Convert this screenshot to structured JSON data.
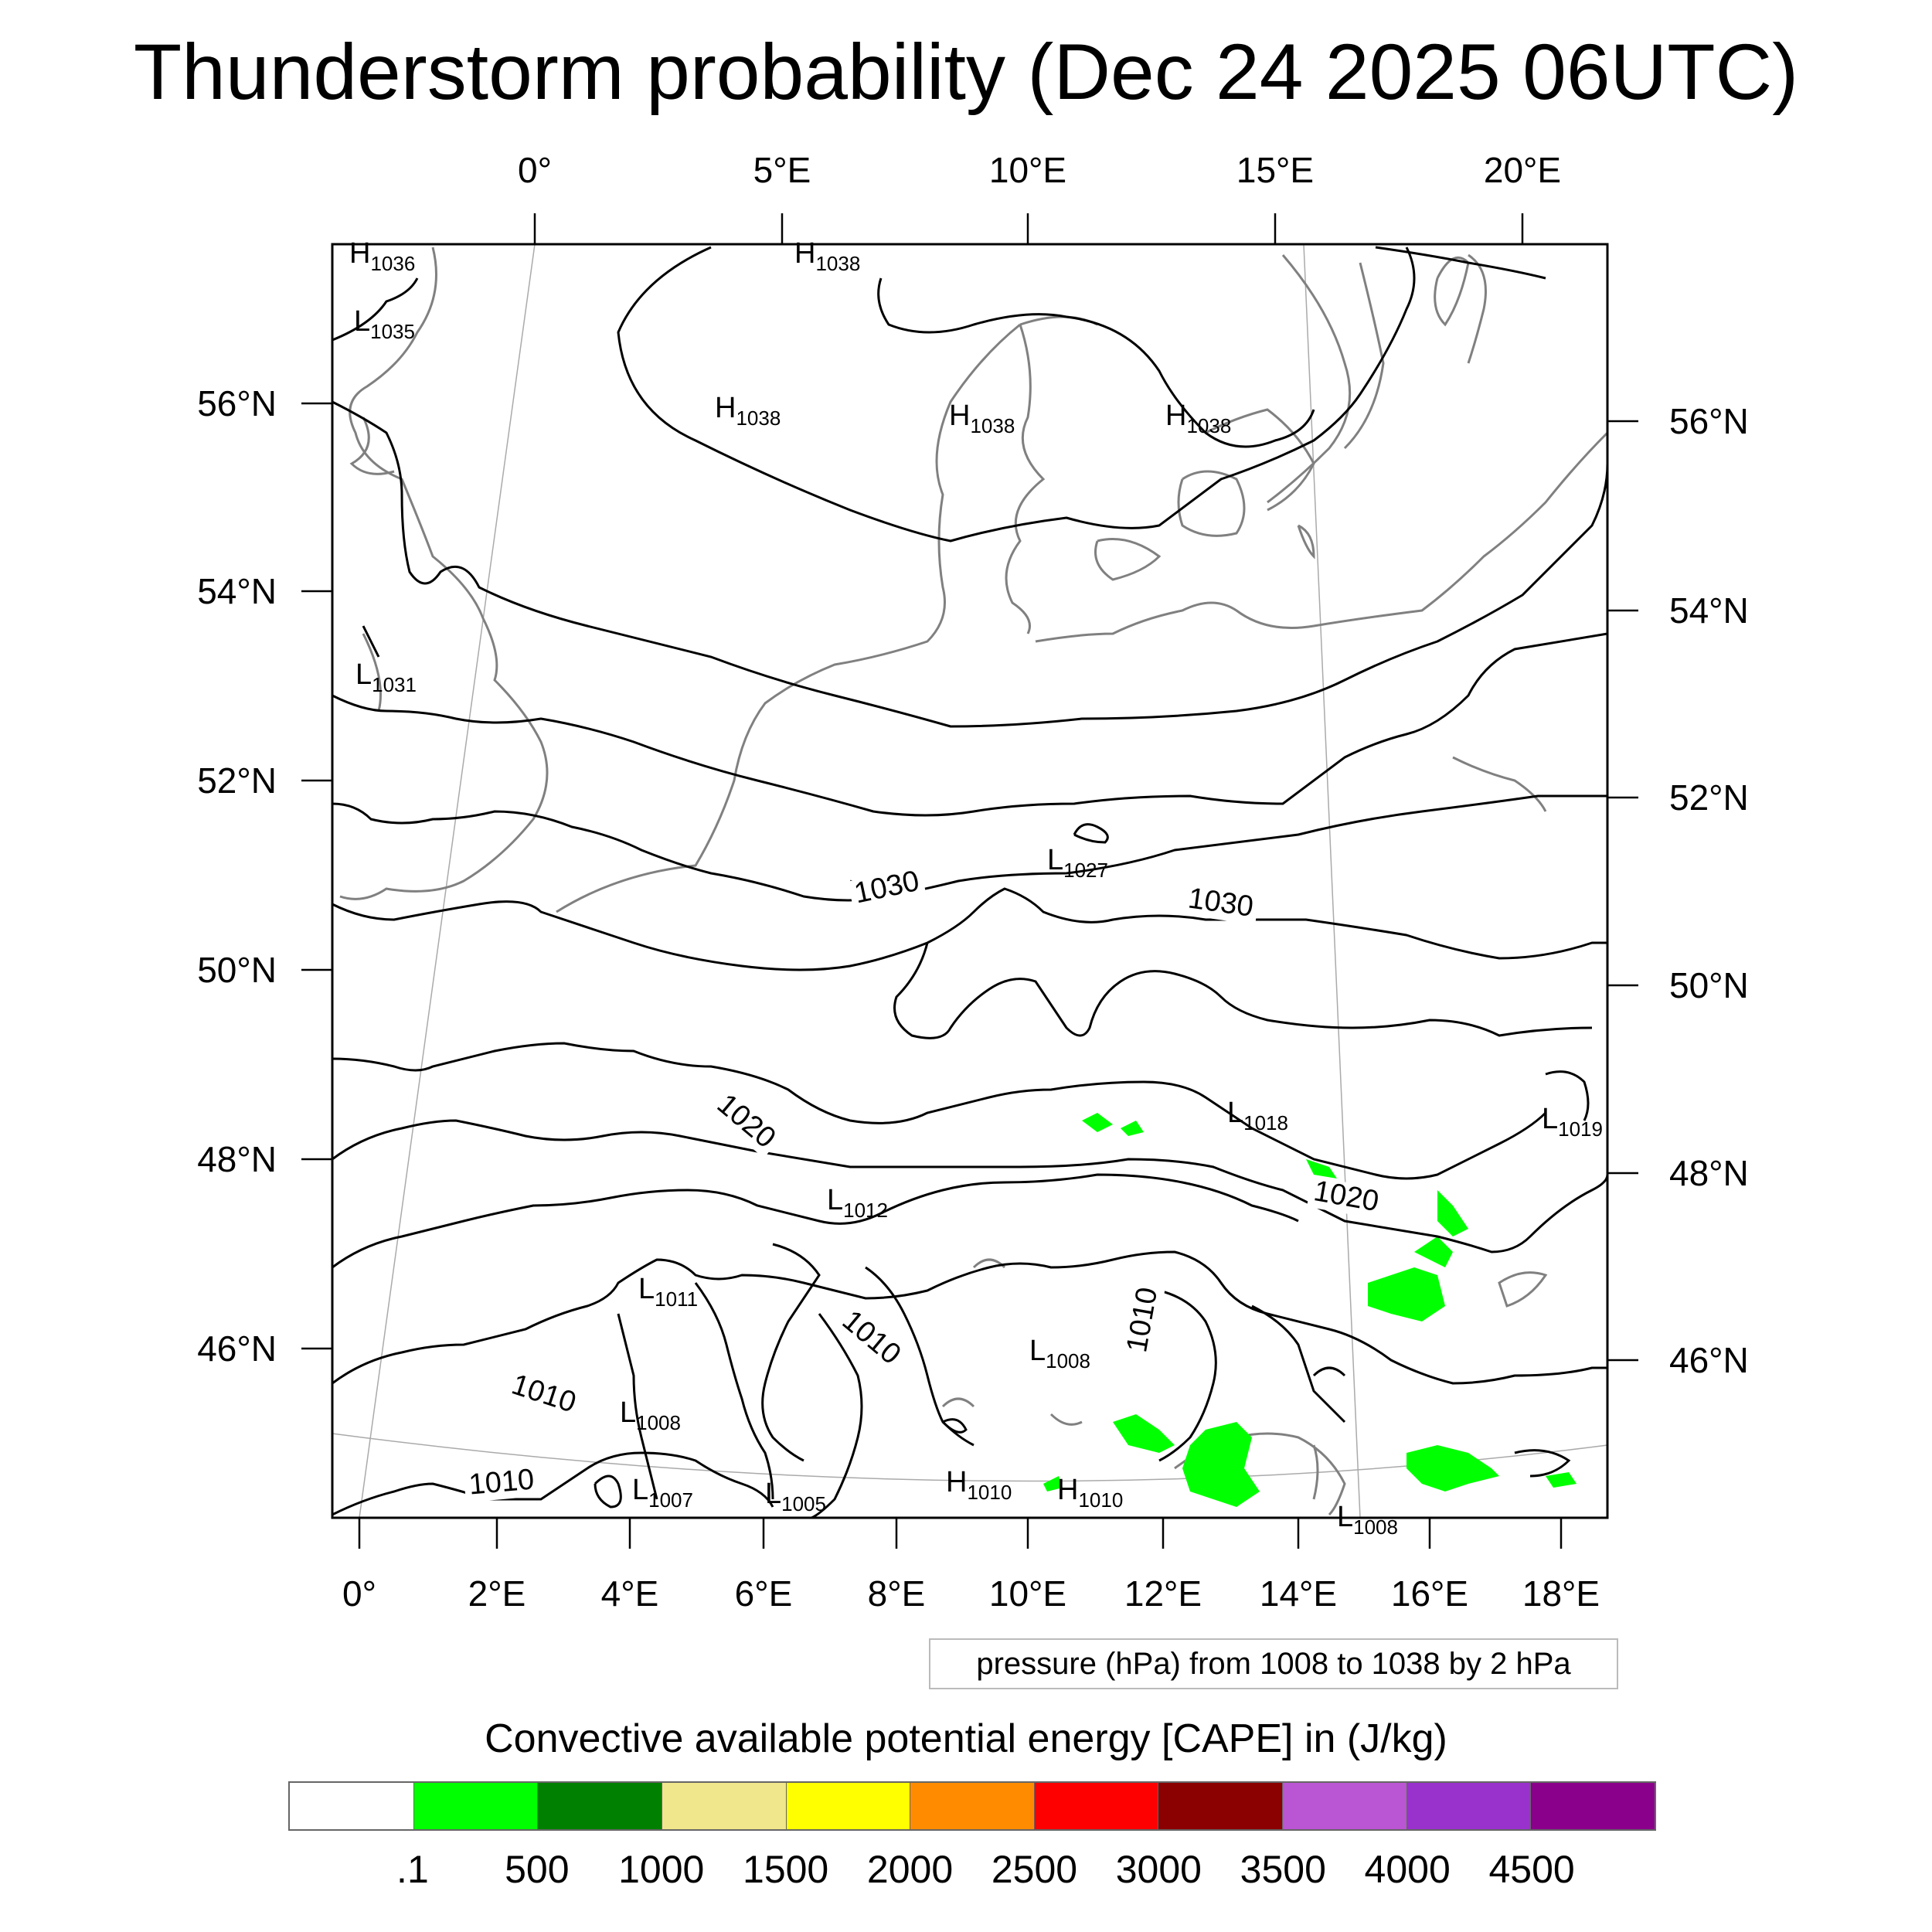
{
  "title": "Thunderstorm probability (Dec 24 2025 06UTC)",
  "top_axis_labels": [
    "0°",
    "5°E",
    "10°E",
    "15°E",
    "20°E"
  ],
  "bottom_axis_labels": [
    "0°",
    "2°E",
    "4°E",
    "6°E",
    "8°E",
    "10°E",
    "12°E",
    "14°E",
    "16°E",
    "18°E"
  ],
  "left_axis_labels": [
    "56°N",
    "54°N",
    "52°N",
    "50°N",
    "48°N",
    "46°N"
  ],
  "right_axis_labels": [
    "56°N",
    "54°N",
    "52°N",
    "50°N",
    "48°N",
    "46°N"
  ],
  "pressure_markers": [
    {
      "type": "H",
      "value": "1036"
    },
    {
      "type": "L",
      "value": "1035"
    },
    {
      "type": "H",
      "value": "1038"
    },
    {
      "type": "H",
      "value": "1038"
    },
    {
      "type": "H",
      "value": "1038"
    },
    {
      "type": "H",
      "value": "1038"
    },
    {
      "type": "L",
      "value": "1031"
    },
    {
      "type": "L",
      "value": "1027"
    },
    {
      "type": "L",
      "value": "1018"
    },
    {
      "type": "L",
      "value": "1019"
    },
    {
      "type": "L",
      "value": "1012"
    },
    {
      "type": "L",
      "value": "1011"
    },
    {
      "type": "L",
      "value": "1008"
    },
    {
      "type": "L",
      "value": "1008"
    },
    {
      "type": "L",
      "value": "1007"
    },
    {
      "type": "L",
      "value": "1005"
    },
    {
      "type": "H",
      "value": "1010"
    },
    {
      "type": "H",
      "value": "1010"
    },
    {
      "type": "L",
      "value": "1008"
    }
  ],
  "contour_labels": [
    "1030",
    "1030",
    "1020",
    "1020",
    "1010",
    "1010",
    "1010",
    "1010"
  ],
  "info_box": "pressure (hPa) from 1008 to 1038 by 2 hPa",
  "colorbar": {
    "title": "Convective available potential energy [CAPE] in (J/kg)",
    "colors": [
      "#ffffff",
      "#00ff00",
      "#008000",
      "#f0e68c",
      "#ffff00",
      "#ff8c00",
      "#ff0000",
      "#8b0000",
      "#ba55d3",
      "#9932cc",
      "#8b008b"
    ],
    "labels": [
      ".1",
      "500",
      "1000",
      "1500",
      "2000",
      "2500",
      "3000",
      "3500",
      "4000",
      "4500"
    ]
  }
}
